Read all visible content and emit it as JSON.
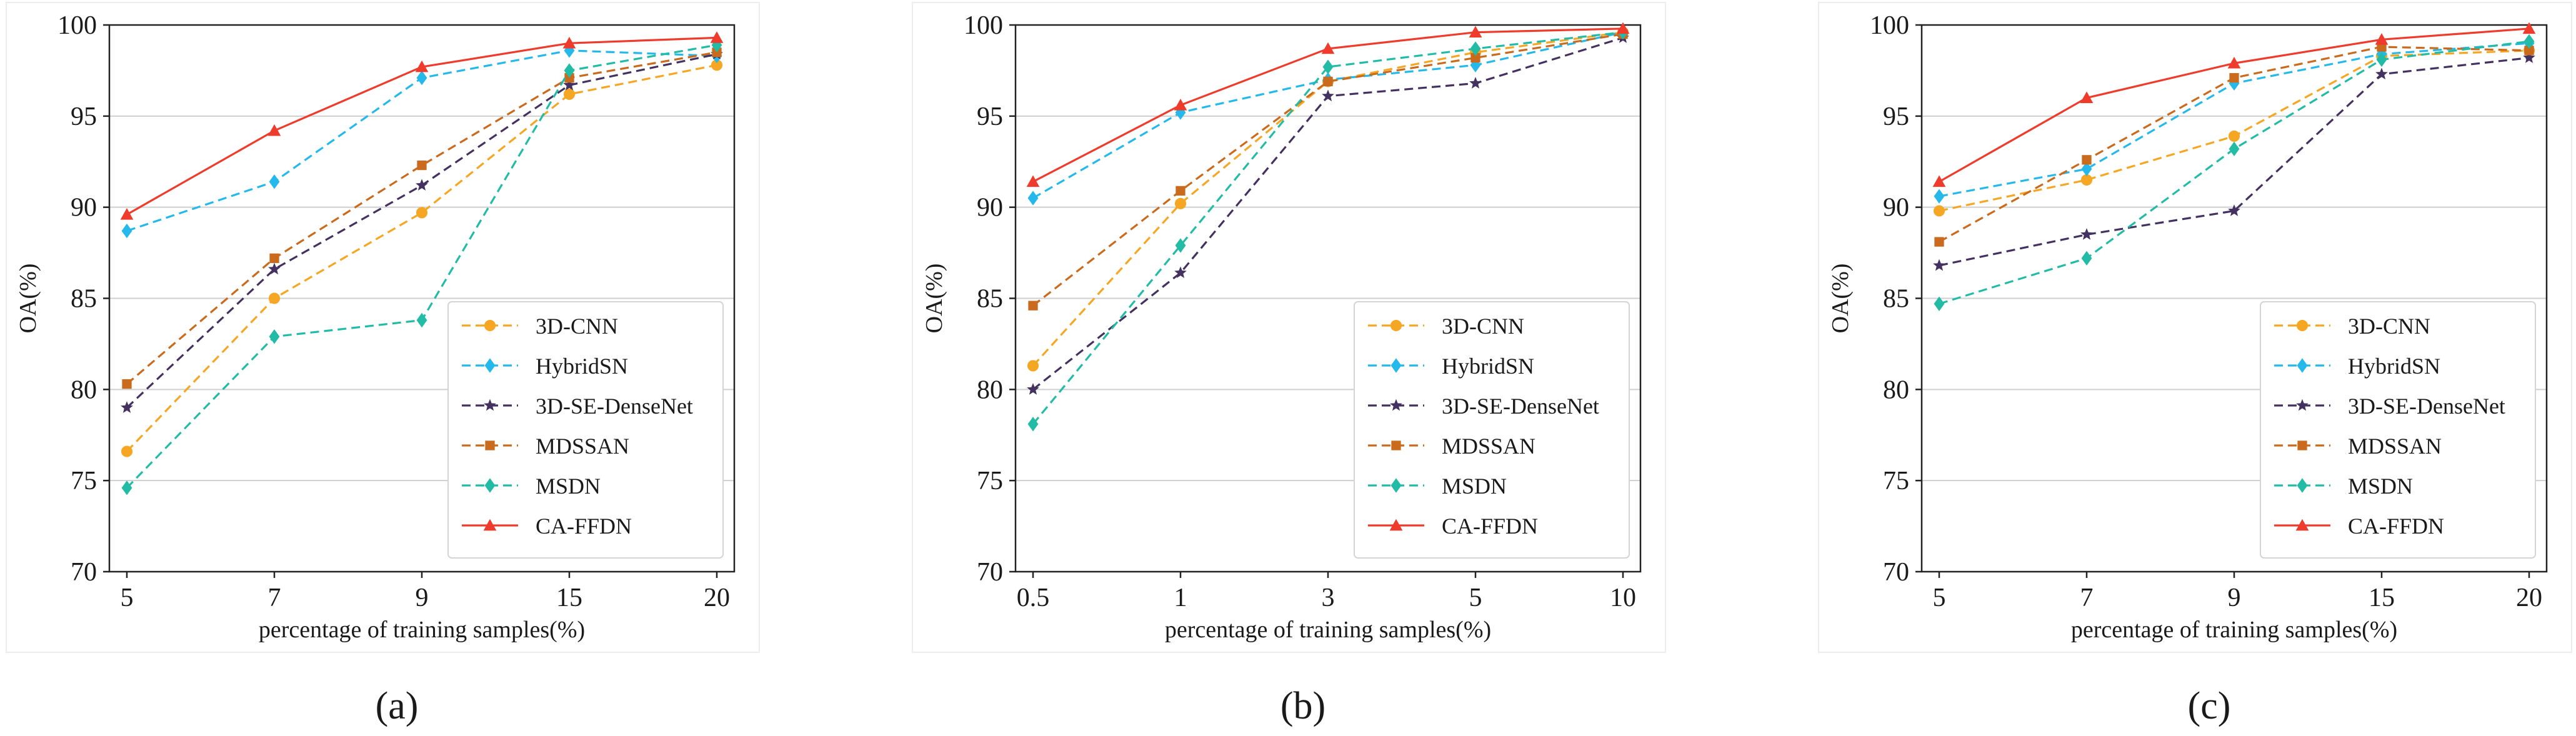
{
  "chart_data": [
    {
      "type": "line",
      "panel_label": "(a)",
      "categories": [
        "5",
        "7",
        "9",
        "15",
        "20"
      ],
      "xlabel": "percentage of training samples(%)",
      "ylabel": "OA(%)",
      "ylim": [
        70,
        100
      ],
      "yticks": [
        70,
        75,
        80,
        85,
        90,
        95,
        100
      ],
      "grid": "horizontal",
      "legend_position": "lower-right",
      "series": [
        {
          "name": "3D-CNN",
          "color": "#f5a623",
          "marker": "circle",
          "dashed": true,
          "values": [
            76.6,
            85.0,
            89.7,
            96.2,
            97.8
          ]
        },
        {
          "name": "HybridSN",
          "color": "#25b8ea",
          "marker": "diamond",
          "dashed": true,
          "values": [
            88.7,
            91.4,
            97.1,
            98.6,
            98.3
          ]
        },
        {
          "name": "3D-SE-DenseNet",
          "color": "#433260",
          "marker": "star",
          "dashed": true,
          "values": [
            79.0,
            86.6,
            91.2,
            96.7,
            98.4
          ]
        },
        {
          "name": "MDSSAN",
          "color": "#c96a1c",
          "marker": "square",
          "dashed": true,
          "values": [
            80.3,
            87.2,
            92.3,
            97.1,
            98.5
          ]
        },
        {
          "name": "MSDN",
          "color": "#22bba6",
          "marker": "diamond",
          "dashed": true,
          "values": [
            74.6,
            82.9,
            83.8,
            97.5,
            98.9
          ]
        },
        {
          "name": "CA-FFDN",
          "color": "#ee3b2b",
          "marker": "triangle",
          "dashed": false,
          "values": [
            89.6,
            94.2,
            97.7,
            99.0,
            99.3
          ]
        }
      ]
    },
    {
      "type": "line",
      "panel_label": "(b)",
      "categories": [
        "0.5",
        "1",
        "3",
        "5",
        "10"
      ],
      "xlabel": "percentage of training samples(%)",
      "ylabel": "OA(%)",
      "ylim": [
        70,
        100
      ],
      "yticks": [
        70,
        75,
        80,
        85,
        90,
        95,
        100
      ],
      "grid": "horizontal",
      "legend_position": "lower-right",
      "series": [
        {
          "name": "3D-CNN",
          "color": "#f5a623",
          "marker": "circle",
          "dashed": true,
          "values": [
            81.3,
            90.2,
            96.9,
            98.5,
            99.6
          ]
        },
        {
          "name": "HybridSN",
          "color": "#25b8ea",
          "marker": "diamond",
          "dashed": true,
          "values": [
            90.5,
            95.2,
            97.0,
            97.8,
            99.6
          ]
        },
        {
          "name": "3D-SE-DenseNet",
          "color": "#433260",
          "marker": "star",
          "dashed": true,
          "values": [
            80.0,
            86.4,
            96.1,
            96.8,
            99.3
          ]
        },
        {
          "name": "MDSSAN",
          "color": "#c96a1c",
          "marker": "square",
          "dashed": true,
          "values": [
            84.6,
            90.9,
            96.9,
            98.2,
            99.5
          ]
        },
        {
          "name": "MSDN",
          "color": "#22bba6",
          "marker": "diamond",
          "dashed": true,
          "values": [
            78.1,
            87.9,
            97.7,
            98.7,
            99.6
          ]
        },
        {
          "name": "CA-FFDN",
          "color": "#ee3b2b",
          "marker": "triangle",
          "dashed": false,
          "values": [
            91.4,
            95.6,
            98.7,
            99.6,
            99.8
          ]
        }
      ]
    },
    {
      "type": "line",
      "panel_label": "(c)",
      "categories": [
        "5",
        "7",
        "9",
        "15",
        "20"
      ],
      "xlabel": "percentage of training samples(%)",
      "ylabel": "OA(%)",
      "ylim": [
        70,
        100
      ],
      "yticks": [
        70,
        75,
        80,
        85,
        90,
        95,
        100
      ],
      "grid": "horizontal",
      "legend_position": "lower-right",
      "series": [
        {
          "name": "3D-CNN",
          "color": "#f5a623",
          "marker": "circle",
          "dashed": true,
          "values": [
            89.8,
            91.5,
            93.9,
            98.3,
            98.6
          ]
        },
        {
          "name": "HybridSN",
          "color": "#25b8ea",
          "marker": "diamond",
          "dashed": true,
          "values": [
            90.6,
            92.1,
            96.8,
            98.4,
            99.0
          ]
        },
        {
          "name": "3D-SE-DenseNet",
          "color": "#433260",
          "marker": "star",
          "dashed": true,
          "values": [
            86.8,
            88.5,
            89.8,
            97.3,
            98.2
          ]
        },
        {
          "name": "MDSSAN",
          "color": "#c96a1c",
          "marker": "square",
          "dashed": true,
          "values": [
            88.1,
            92.6,
            97.1,
            98.8,
            98.6
          ]
        },
        {
          "name": "MSDN",
          "color": "#22bba6",
          "marker": "diamond",
          "dashed": true,
          "values": [
            84.7,
            87.2,
            93.2,
            98.1,
            99.1
          ]
        },
        {
          "name": "CA-FFDN",
          "color": "#ee3b2b",
          "marker": "triangle",
          "dashed": false,
          "values": [
            91.4,
            96.0,
            97.9,
            99.2,
            99.8
          ]
        }
      ]
    }
  ]
}
